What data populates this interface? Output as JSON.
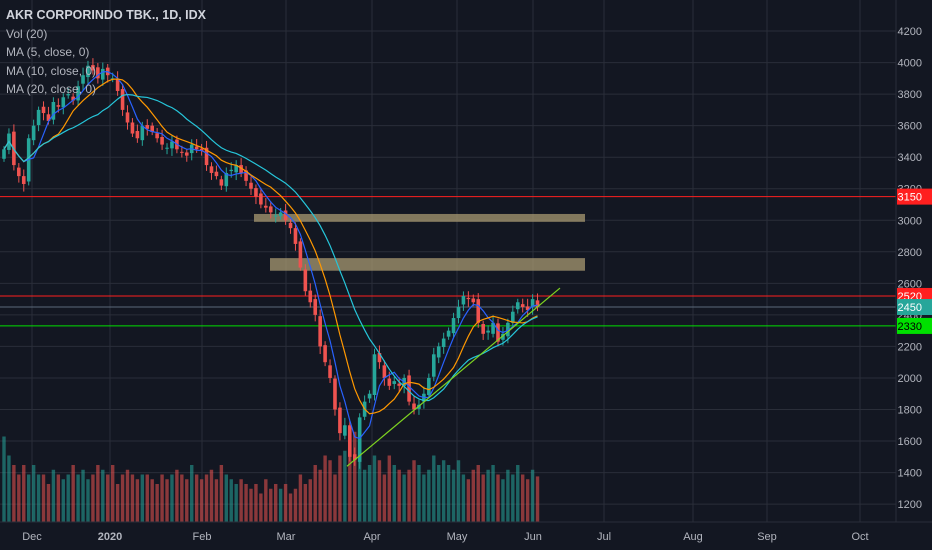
{
  "legend": {
    "title": "AKR CORPORINDO TBK., 1D, IDX",
    "vol": "Vol (20)",
    "ma5": "MA (5, close, 0)",
    "ma10": "MA (10, close, 0)",
    "ma20": "MA (20, close, 0)"
  },
  "colors": {
    "background": "#131722",
    "grid": "#2a2e39",
    "up": "#26a69a",
    "down": "#ef5350",
    "ma5": "#2962ff",
    "ma10": "#ff9800",
    "ma20": "#26c6da",
    "resistance": "#ff1f1f",
    "support": "#00e000",
    "zone": "#a89a72"
  },
  "chart_data": {
    "type": "candlestick",
    "title": "AKR CORPORINDO TBK., 1D, IDX",
    "x_tick_labels": [
      "Dec",
      "2020",
      "Feb",
      "Mar",
      "Apr",
      "May",
      "Jun",
      "Jul",
      "Aug",
      "Sep",
      "Oct"
    ],
    "y_tick_labels": [
      1200,
      1400,
      1600,
      1800,
      2000,
      2200,
      2400,
      2600,
      2800,
      3000,
      3200,
      3400,
      3600,
      3800,
      4000,
      4200
    ],
    "ylim": [
      1150,
      4270
    ],
    "grid": true,
    "price_labels": [
      {
        "value": 3150,
        "label": "3150",
        "kind": "resistance"
      },
      {
        "value": 2520,
        "label": "2520",
        "kind": "resistance"
      },
      {
        "value": 2450,
        "label": "2450",
        "kind": "last"
      },
      {
        "value": 2330,
        "label": "2330",
        "kind": "support"
      }
    ],
    "zones": [
      {
        "low": 2990,
        "high": 3040
      },
      {
        "low": 2680,
        "high": 2760
      }
    ],
    "trendline": {
      "from": {
        "date": "2020-03-24",
        "price": 1440
      },
      "to": {
        "date": "2020-06-12",
        "price": 2570
      }
    },
    "start_date": "2019-11-25",
    "ohlc_close": [
      3450,
      3550,
      3350,
      3280,
      3230,
      3520,
      3600,
      3700,
      3680,
      3630,
      3750,
      3720,
      3780,
      3800,
      3760,
      3850,
      3920,
      3980,
      3950,
      3900,
      3960,
      3920,
      3900,
      3820,
      3700,
      3620,
      3550,
      3520,
      3600,
      3580,
      3560,
      3520,
      3480,
      3460,
      3500,
      3450,
      3430,
      3410,
      3480,
      3450,
      3440,
      3350,
      3300,
      3280,
      3220,
      3300,
      3320,
      3350,
      3300,
      3250,
      3200,
      3150,
      3100,
      3080,
      3050,
      3030,
      3050,
      3000,
      2950,
      2850,
      2700,
      2550,
      2480,
      2400,
      2200,
      2100,
      2000,
      1800,
      1650,
      1700,
      1500,
      1480,
      1750,
      1850,
      1900,
      2150,
      2100,
      2000,
      1950,
      1980,
      1950,
      2000,
      1850,
      1800,
      1830,
      1900,
      2000,
      2150,
      2200,
      2250,
      2300,
      2380,
      2450,
      2520,
      2500,
      2480,
      2350,
      2280,
      2300,
      2350,
      2230,
      2280,
      2350,
      2420,
      2480,
      2450,
      2430,
      2500,
      2450
    ],
    "volume_relative": [
      0.9,
      0.7,
      0.6,
      0.5,
      0.6,
      0.5,
      0.6,
      0.5,
      0.5,
      0.4,
      0.55,
      0.5,
      0.45,
      0.5,
      0.6,
      0.5,
      0.55,
      0.45,
      0.5,
      0.6,
      0.55,
      0.5,
      0.6,
      0.4,
      0.5,
      0.55,
      0.5,
      0.45,
      0.5,
      0.5,
      0.45,
      0.4,
      0.5,
      0.45,
      0.5,
      0.55,
      0.5,
      0.45,
      0.6,
      0.5,
      0.45,
      0.5,
      0.55,
      0.45,
      0.6,
      0.5,
      0.45,
      0.4,
      0.45,
      0.4,
      0.35,
      0.4,
      0.3,
      0.45,
      0.35,
      0.4,
      0.35,
      0.4,
      0.3,
      0.35,
      0.5,
      0.4,
      0.45,
      0.6,
      0.55,
      0.7,
      0.65,
      0.5,
      0.7,
      0.75,
      0.85,
      0.95,
      1.0,
      0.55,
      0.6,
      0.7,
      0.65,
      0.5,
      0.7,
      0.6,
      0.55,
      0.5,
      0.55,
      0.65,
      0.6,
      0.5,
      0.55,
      0.7,
      0.6,
      0.65,
      0.6,
      0.55,
      0.65,
      0.5,
      0.45,
      0.55,
      0.6,
      0.5,
      0.55,
      0.6,
      0.5,
      0.45,
      0.55,
      0.5,
      0.6,
      0.5,
      0.45,
      0.55,
      0.48
    ]
  }
}
